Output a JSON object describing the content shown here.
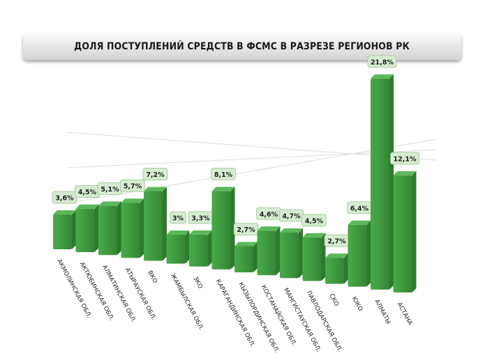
{
  "chart_data": {
    "type": "bar",
    "title": "ДОЛЯ ПОСТУПЛЕНИЙ СРЕДСТВ В ФСМС В РАЗРЕЗЕ РЕГИОНОВ РК",
    "xlabel": "",
    "ylabel": "",
    "ylim": [
      0,
      25
    ],
    "grid": true,
    "legend": "none",
    "categories": [
      "АКМОЛИНСКАЯ ОБЛ.",
      "АКТЮБИНСКАЯ ОБЛ.",
      "АЛМАТИНСКАЯ ОБЛ.",
      "АТЫРАУСКАЯ ОБЛ.",
      "ВКО",
      "ЖАМБЫЛСКАЯ ОБЛ.",
      "ЗКО",
      "КАРАГАНДИНСКАЯ ОБЛ.",
      "КЫЗЫЛОРДИНСКАЯ ОБЛ.",
      "КОСТАНАЙСКАЯ ОБЛ.",
      "МАНГИСТАУСКАЯ ОБЛ.",
      "ПАВЛОДАРСКАЯ ОБЛ.",
      "СКО",
      "ЮКО",
      "АЛМАТЫ",
      "АСТАНА"
    ],
    "values": [
      3.6,
      4.5,
      5.1,
      5.7,
      7.2,
      3.0,
      3.3,
      8.1,
      2.7,
      4.6,
      4.7,
      4.5,
      2.7,
      6.4,
      21.8,
      12.1
    ],
    "data_labels": [
      "3,6%",
      "4,5%",
      "5,1%",
      "5,7%",
      "7,2%",
      "3%",
      "3,3%",
      "8,1%",
      "2,7%",
      "4,6%",
      "4,7%",
      "4,5%",
      "2,7%",
      "6,4%",
      "21,8%",
      "12,1%"
    ],
    "colors": {
      "bar_front": "#3f9a3f",
      "bar_side": "#2c7a2c",
      "bar_top": "#5cb85c",
      "gridline": "#dcdcdc"
    }
  }
}
